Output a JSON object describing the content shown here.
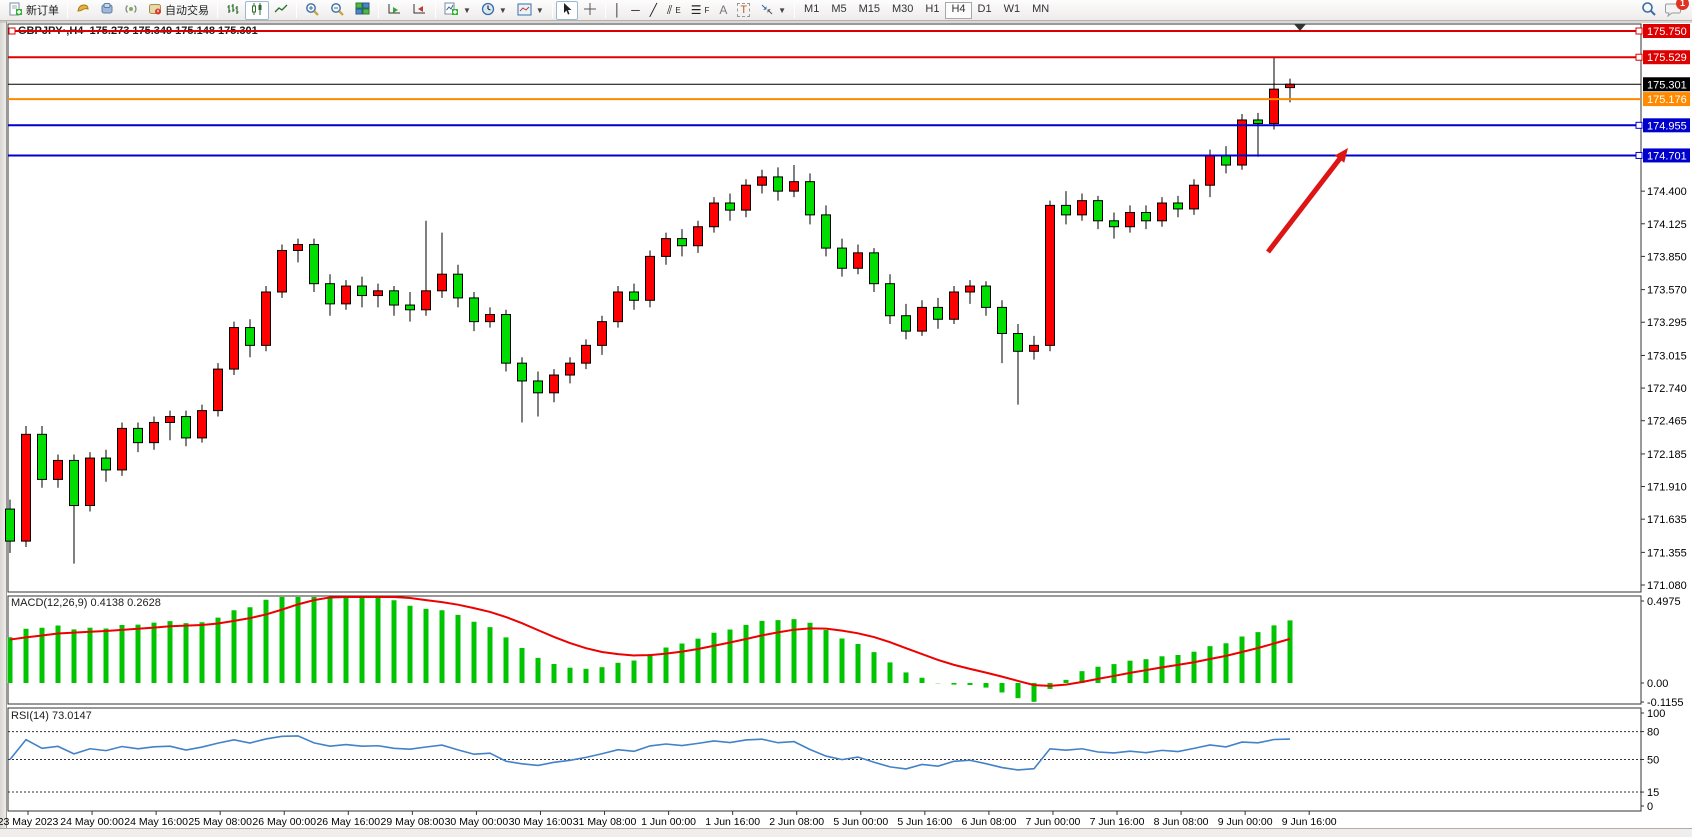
{
  "toolbar": {
    "new_order": "新订单",
    "auto_trading": "自动交易",
    "text_tool": "A",
    "label_tool": "T",
    "channel_letter": "E",
    "fibo_letter": "F",
    "timeframes": [
      "M1",
      "M5",
      "M15",
      "M30",
      "H1",
      "H4",
      "D1",
      "W1",
      "MN"
    ],
    "active_timeframe": "H4",
    "notification_badge": "1"
  },
  "chart": {
    "symbol_title": "GBPJPY·,H4",
    "ohlc_text": "175.273 175.349 175.148 175.301",
    "macd_label": "MACD(12,26,9) 0.4138 0.2628",
    "rsi_label": "RSI(14) 73.0147"
  },
  "chart_data": {
    "type": "candlestick",
    "symbol": "GBPJPY",
    "timeframe": "H4",
    "current_ohlc": {
      "open": "175.273",
      "high": "175.349",
      "low": "175.148",
      "close": "175.301"
    },
    "price_axis": {
      "labels": [
        "174.400",
        "174.125",
        "173.850",
        "173.570",
        "173.295",
        "173.015",
        "172.740",
        "172.465",
        "172.185",
        "171.910",
        "171.635",
        "171.355",
        "171.080"
      ],
      "values": [
        174.4,
        174.125,
        173.85,
        173.57,
        173.295,
        173.015,
        172.74,
        172.465,
        172.185,
        171.91,
        171.635,
        171.355,
        171.08
      ],
      "range": [
        171.021,
        175.809
      ]
    },
    "time_labels": [
      "23 May 2023",
      "24 May 00:00",
      "24 May 16:00",
      "25 May 08:00",
      "26 May 00:00",
      "26 May 16:00",
      "29 May 08:00",
      "30 May 00:00",
      "30 May 16:00",
      "31 May 08:00",
      "1 Jun 00:00",
      "1 Jun 16:00",
      "2 Jun 08:00",
      "5 Jun 00:00",
      "5 Jun 16:00",
      "6 Jun 08:00",
      "7 Jun 00:00",
      "7 Jun 16:00",
      "8 Jun 08:00",
      "9 Jun 00:00",
      "9 Jun 16:00"
    ],
    "candles": [
      [
        171.72,
        171.8,
        171.35,
        171.45
      ],
      [
        171.45,
        172.42,
        171.4,
        172.35
      ],
      [
        172.35,
        172.42,
        171.9,
        171.97
      ],
      [
        171.97,
        172.18,
        171.9,
        172.13
      ],
      [
        172.13,
        172.18,
        171.26,
        171.75
      ],
      [
        171.75,
        172.2,
        171.7,
        172.15
      ],
      [
        172.15,
        172.22,
        171.95,
        172.05
      ],
      [
        172.05,
        172.45,
        172.0,
        172.4
      ],
      [
        172.4,
        172.45,
        172.2,
        172.28
      ],
      [
        172.28,
        172.5,
        172.22,
        172.45
      ],
      [
        172.45,
        172.55,
        172.3,
        172.5
      ],
      [
        172.5,
        172.55,
        172.25,
        172.32
      ],
      [
        172.32,
        172.6,
        172.28,
        172.55
      ],
      [
        172.55,
        172.95,
        172.5,
        172.9
      ],
      [
        172.9,
        173.3,
        172.85,
        173.25
      ],
      [
        173.25,
        173.32,
        173.0,
        173.1
      ],
      [
        173.1,
        173.6,
        173.05,
        173.55
      ],
      [
        173.55,
        173.95,
        173.5,
        173.9
      ],
      [
        173.9,
        174.0,
        173.8,
        173.95
      ],
      [
        173.95,
        174.0,
        173.55,
        173.62
      ],
      [
        173.62,
        173.7,
        173.35,
        173.45
      ],
      [
        173.45,
        173.65,
        173.4,
        173.6
      ],
      [
        173.6,
        173.68,
        173.42,
        173.52
      ],
      [
        173.52,
        173.62,
        173.42,
        173.56
      ],
      [
        173.56,
        173.6,
        173.35,
        173.44
      ],
      [
        173.44,
        173.55,
        173.3,
        173.4
      ],
      [
        173.4,
        174.15,
        173.35,
        173.56
      ],
      [
        173.56,
        174.05,
        173.5,
        173.7
      ],
      [
        173.7,
        173.78,
        173.42,
        173.5
      ],
      [
        173.5,
        173.55,
        173.22,
        173.3
      ],
      [
        173.3,
        173.42,
        173.25,
        173.36
      ],
      [
        173.36,
        173.4,
        172.88,
        172.95
      ],
      [
        172.95,
        173.0,
        172.45,
        172.8
      ],
      [
        172.8,
        172.88,
        172.5,
        172.7
      ],
      [
        172.7,
        172.9,
        172.62,
        172.85
      ],
      [
        172.85,
        173.0,
        172.78,
        172.95
      ],
      [
        172.95,
        173.15,
        172.9,
        173.1
      ],
      [
        173.1,
        173.35,
        173.02,
        173.3
      ],
      [
        173.3,
        173.6,
        173.25,
        173.55
      ],
      [
        173.55,
        173.62,
        173.4,
        173.48
      ],
      [
        173.48,
        173.9,
        173.42,
        173.85
      ],
      [
        173.85,
        174.05,
        173.78,
        174.0
      ],
      [
        174.0,
        174.08,
        173.85,
        173.94
      ],
      [
        173.94,
        174.15,
        173.88,
        174.1
      ],
      [
        174.1,
        174.35,
        174.05,
        174.3
      ],
      [
        174.3,
        174.38,
        174.15,
        174.24
      ],
      [
        174.24,
        174.5,
        174.18,
        174.45
      ],
      [
        174.45,
        174.58,
        174.38,
        174.52
      ],
      [
        174.52,
        174.6,
        174.32,
        174.4
      ],
      [
        174.4,
        174.62,
        174.35,
        174.48
      ],
      [
        174.48,
        174.55,
        174.12,
        174.2
      ],
      [
        174.2,
        174.28,
        173.85,
        173.92
      ],
      [
        173.92,
        174.0,
        173.68,
        173.75
      ],
      [
        173.75,
        173.95,
        173.7,
        173.88
      ],
      [
        173.88,
        173.92,
        173.55,
        173.62
      ],
      [
        173.62,
        173.7,
        173.28,
        173.35
      ],
      [
        173.35,
        173.45,
        173.15,
        173.22
      ],
      [
        173.22,
        173.48,
        173.18,
        173.42
      ],
      [
        173.42,
        173.5,
        173.24,
        173.32
      ],
      [
        173.32,
        173.6,
        173.28,
        173.55
      ],
      [
        173.55,
        173.65,
        173.45,
        173.6
      ],
      [
        173.6,
        173.64,
        173.35,
        173.42
      ],
      [
        173.42,
        173.48,
        172.95,
        173.2
      ],
      [
        173.2,
        173.28,
        172.6,
        173.05
      ],
      [
        173.05,
        173.18,
        172.98,
        173.1
      ],
      [
        173.1,
        174.32,
        173.05,
        174.28
      ],
      [
        174.28,
        174.4,
        174.12,
        174.2
      ],
      [
        174.2,
        174.38,
        174.15,
        174.32
      ],
      [
        174.32,
        174.36,
        174.08,
        174.15
      ],
      [
        174.15,
        174.22,
        174.0,
        174.1
      ],
      [
        174.1,
        174.28,
        174.05,
        174.22
      ],
      [
        174.22,
        174.28,
        174.08,
        174.15
      ],
      [
        174.15,
        174.35,
        174.1,
        174.3
      ],
      [
        174.3,
        174.36,
        174.18,
        174.25
      ],
      [
        174.25,
        174.5,
        174.2,
        174.45
      ],
      [
        174.45,
        174.75,
        174.35,
        174.7
      ],
      [
        174.7,
        174.78,
        174.55,
        174.62
      ],
      [
        174.62,
        175.05,
        174.58,
        175.0
      ],
      [
        175.0,
        175.06,
        174.69,
        174.97
      ],
      [
        174.97,
        175.53,
        174.92,
        175.26
      ],
      [
        175.273,
        175.349,
        175.148,
        175.301
      ]
    ],
    "levels": [
      {
        "price": 175.75,
        "label": "175.750",
        "color": "#dd0000",
        "width": 2,
        "handle": true,
        "left_handle": true
      },
      {
        "price": 175.529,
        "label": "175.529",
        "color": "#dd0000",
        "width": 2,
        "handle": true,
        "left_handle": false
      },
      {
        "price": 175.301,
        "label": "175.301",
        "color": "#000000",
        "width": 1,
        "handle": false,
        "left_handle": false
      },
      {
        "price": 175.176,
        "label": "175.176",
        "color": "#ff8a00",
        "width": 2,
        "handle": false,
        "left_handle": false
      },
      {
        "price": 174.955,
        "label": "174.955",
        "color": "#0000cc",
        "width": 2,
        "handle": true,
        "left_handle": false
      },
      {
        "price": 174.701,
        "label": "174.701",
        "color": "#0000cc",
        "width": 2,
        "handle": true,
        "left_handle": false
      }
    ],
    "macd": {
      "label": "MACD(12,26,9) 0.4138 0.2628",
      "main_value": "0.4138",
      "signal_value": "0.2628",
      "params": "12,26,9",
      "axis_labels": [
        "0.4975",
        "0.00",
        "-0.1155"
      ],
      "axis_values": [
        0.4975,
        0,
        -0.1155
      ],
      "hist_color": "#00c400",
      "signal_color": "#ee0000"
    },
    "rsi": {
      "label": "RSI(14) 73.0147",
      "value": "73.0147",
      "period": "14",
      "axis_labels": [
        "100",
        "80",
        "50",
        "15",
        "0"
      ],
      "axis_values": [
        100,
        80,
        50,
        15,
        0
      ],
      "dashed_levels": [
        80,
        50,
        15
      ],
      "line_color": "#4282c8"
    },
    "arrow": {
      "from": [
        1268,
        252
      ],
      "to": [
        1348,
        148
      ],
      "color": "#dd1515"
    },
    "colors": {
      "up": "#ff0000",
      "down": "#00dd00",
      "outline": "#000000",
      "background": "#ffffff"
    }
  }
}
